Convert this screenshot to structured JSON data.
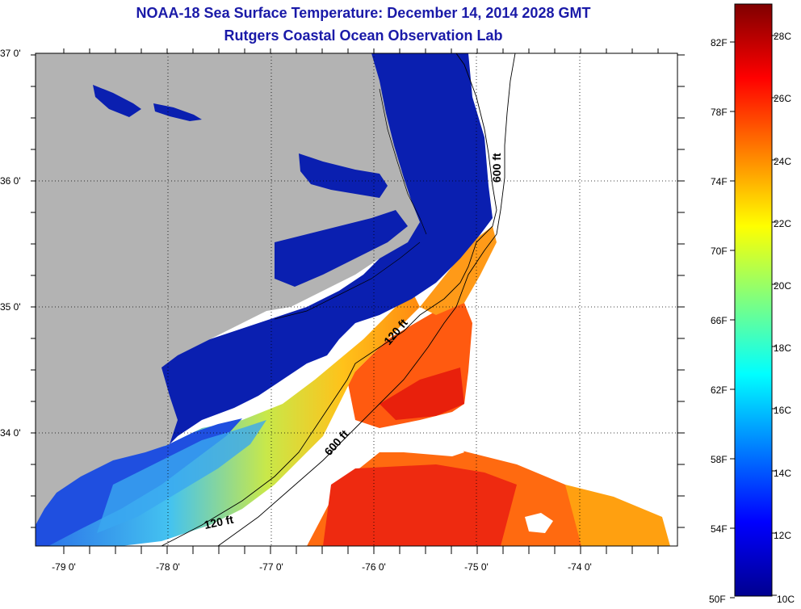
{
  "title": {
    "line1": "NOAA-18 Sea Surface Temperature:  December 14, 2014 2028 GMT",
    "line2": "Rutgers Coastal Ocean Observation Lab"
  },
  "axes": {
    "lat_labels": [
      "37 0'",
      "36 0'",
      "35 0'",
      "34 0'"
    ],
    "lon_labels": [
      "-79 0'",
      "-78 0'",
      "-77 0'",
      "-76 0'",
      "-75 0'",
      "-74 0'"
    ]
  },
  "colorbar": {
    "fahrenheit": [
      "82F",
      "78F",
      "74F",
      "70F",
      "66F",
      "62F",
      "58F",
      "54F",
      "50F"
    ],
    "celsius": [
      "28C",
      "26C",
      "24C",
      "22C",
      "20C",
      "18C",
      "16C",
      "14C",
      "12C",
      "10C"
    ],
    "range_c": [
      10,
      29
    ],
    "colors": [
      "#00008f",
      "#0000ff",
      "#007fff",
      "#00ffff",
      "#7fff7f",
      "#ffff00",
      "#ff7f00",
      "#ff0000",
      "#7f0000"
    ]
  },
  "isobaths": {
    "shelf": "120 ft",
    "shelf2": "120 ft",
    "slope": "600 ft",
    "slope2": "600 ft"
  },
  "colors": {
    "land": "#b3b3b3",
    "cold_water": "#0a1fb0",
    "title": "#1a1aa8"
  }
}
